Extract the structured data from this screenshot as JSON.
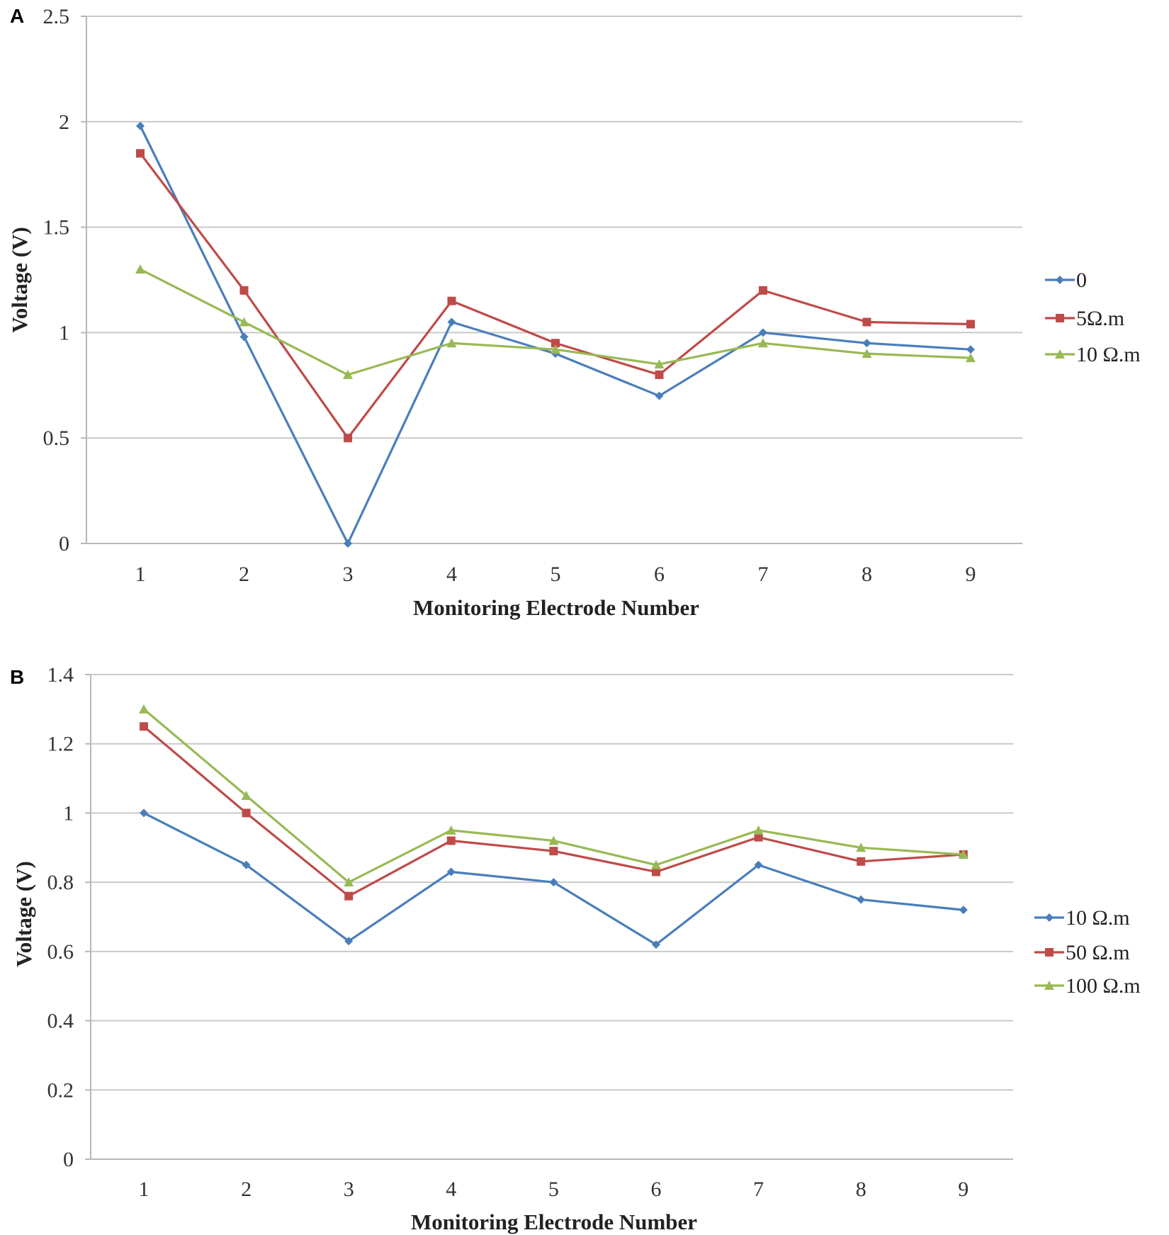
{
  "chart_data": [
    {
      "panel": "A",
      "type": "line",
      "title": "",
      "xlabel": "Monitoring Electrode Number",
      "ylabel": "Voltage (V)",
      "x": [
        1,
        2,
        3,
        4,
        5,
        6,
        7,
        8,
        9
      ],
      "x_tick_labels": [
        "1",
        "2",
        "3",
        "4",
        "5",
        "6",
        "7",
        "8",
        "9"
      ],
      "ylim": [
        0,
        2.5
      ],
      "y_ticks": [
        0,
        0.5,
        1,
        1.5,
        2,
        2.5
      ],
      "y_tick_labels": [
        "0",
        "0.5",
        "1",
        "1.5",
        "2",
        "2.5"
      ],
      "grid": true,
      "legend_position": "right",
      "series": [
        {
          "name": "0",
          "color": "#4a7ebb",
          "marker": "diamond",
          "values": [
            1.98,
            0.98,
            0.0,
            1.05,
            0.9,
            0.7,
            1.0,
            0.95,
            0.92
          ]
        },
        {
          "name": "5Ω.m",
          "color": "#be4b48",
          "marker": "square",
          "values": [
            1.85,
            1.2,
            0.5,
            1.15,
            0.95,
            0.8,
            1.2,
            1.05,
            1.04
          ]
        },
        {
          "name": "10 Ω.m",
          "color": "#98b954",
          "marker": "triangle",
          "values": [
            1.3,
            1.05,
            0.8,
            0.95,
            0.92,
            0.85,
            0.95,
            0.9,
            0.88
          ]
        }
      ]
    },
    {
      "panel": "B",
      "type": "line",
      "title": "",
      "xlabel": "Monitoring Electrode Number",
      "ylabel": "Voltage (V)",
      "x": [
        1,
        2,
        3,
        4,
        5,
        6,
        7,
        8,
        9
      ],
      "x_tick_labels": [
        "1",
        "2",
        "3",
        "4",
        "5",
        "6",
        "7",
        "8",
        "9"
      ],
      "ylim": [
        0,
        1.4
      ],
      "y_ticks": [
        0,
        0.2,
        0.4,
        0.6,
        0.8,
        1,
        1.2,
        1.4
      ],
      "y_tick_labels": [
        "0",
        "0.2",
        "0.4",
        "0.6",
        "0.8",
        "1",
        "1.2",
        "1.4"
      ],
      "grid": true,
      "legend_position": "right",
      "series": [
        {
          "name": "10 Ω.m",
          "color": "#4a7ebb",
          "marker": "diamond",
          "values": [
            1.0,
            0.85,
            0.63,
            0.83,
            0.8,
            0.62,
            0.85,
            0.75,
            0.72
          ]
        },
        {
          "name": "50 Ω.m",
          "color": "#be4b48",
          "marker": "square",
          "values": [
            1.25,
            1.0,
            0.76,
            0.92,
            0.89,
            0.83,
            0.93,
            0.86,
            0.88
          ]
        },
        {
          "name": "100 Ω.m",
          "color": "#98b954",
          "marker": "triangle",
          "values": [
            1.3,
            1.05,
            0.8,
            0.95,
            0.92,
            0.85,
            0.95,
            0.9,
            0.88
          ]
        }
      ]
    }
  ]
}
